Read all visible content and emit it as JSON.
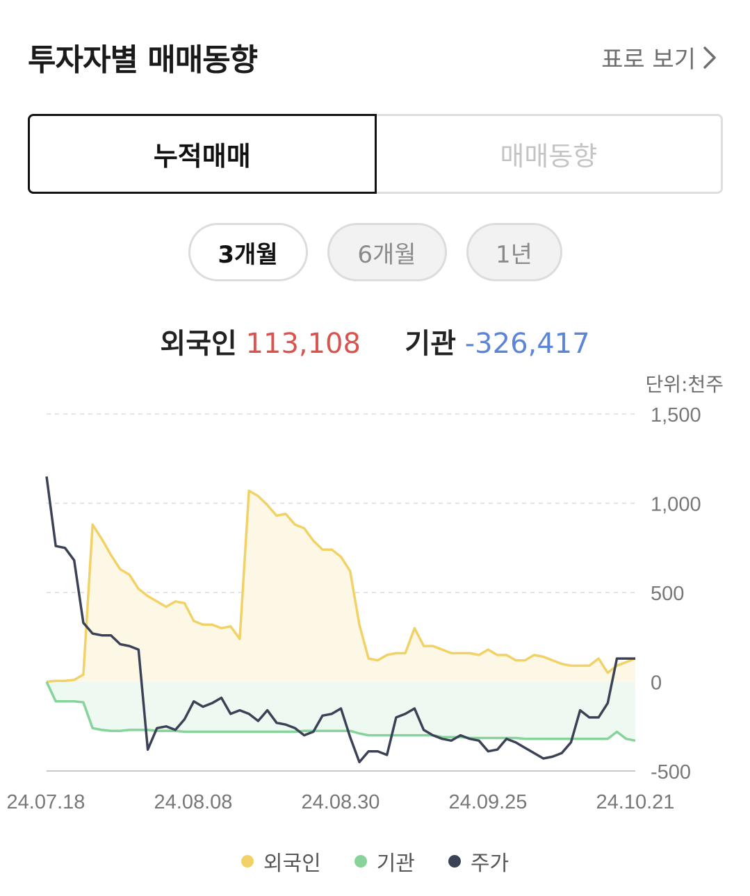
{
  "header": {
    "title": "투자자별 매매동향",
    "table_link": "표로 보기"
  },
  "tabs": [
    {
      "label": "누적매매",
      "active": true
    },
    {
      "label": "매매동향",
      "active": false
    }
  ],
  "periods": [
    {
      "label": "3개월",
      "active": true
    },
    {
      "label": "6개월",
      "active": false
    },
    {
      "label": "1년",
      "active": false
    }
  ],
  "summary": {
    "foreign_label": "외국인",
    "foreign_value": "113,108",
    "institution_label": "기관",
    "institution_value": "-326,417"
  },
  "unit": "단위:천주",
  "colors": {
    "foreign": "#f2d266",
    "institution": "#86d49a",
    "price": "#3b4256",
    "positive": "#d9534f",
    "negative": "#5b85d9"
  },
  "chart_data": {
    "type": "line",
    "yticks": [
      "1,500",
      "1,000",
      "500",
      "0",
      "-500"
    ],
    "ylim": [
      -500,
      1500
    ],
    "xticks": [
      "24.07.18",
      "24.08.08",
      "24.08.30",
      "24.09.25",
      "24.10.21"
    ],
    "x_count": 65,
    "legend": [
      "외국인",
      "기관",
      "주가"
    ],
    "series": [
      {
        "name": "외국인",
        "values": [
          0,
          5,
          5,
          10,
          40,
          880,
          800,
          710,
          630,
          600,
          520,
          480,
          450,
          420,
          450,
          440,
          340,
          320,
          320,
          300,
          310,
          240,
          1070,
          1040,
          990,
          930,
          940,
          880,
          860,
          790,
          740,
          740,
          700,
          620,
          320,
          130,
          120,
          150,
          160,
          160,
          300,
          200,
          200,
          180,
          160,
          160,
          160,
          150,
          180,
          150,
          150,
          120,
          120,
          150,
          140,
          120,
          100,
          90,
          90,
          90,
          130,
          50,
          90,
          110,
          130
        ]
      },
      {
        "name": "기관",
        "values": [
          0,
          -110,
          -110,
          -110,
          -115,
          -260,
          -270,
          -275,
          -275,
          -270,
          -270,
          -270,
          -275,
          -275,
          -275,
          -280,
          -280,
          -280,
          -280,
          -280,
          -280,
          -280,
          -280,
          -280,
          -280,
          -280,
          -280,
          -280,
          -275,
          -275,
          -275,
          -275,
          -275,
          -275,
          -290,
          -300,
          -300,
          -300,
          -300,
          -300,
          -300,
          -300,
          -300,
          -310,
          -310,
          -310,
          -315,
          -315,
          -315,
          -315,
          -315,
          -315,
          -320,
          -320,
          -320,
          -320,
          -320,
          -320,
          -320,
          -320,
          -320,
          -320,
          -280,
          -320,
          -330
        ]
      },
      {
        "name": "주가",
        "values": [
          1150,
          760,
          750,
          680,
          330,
          270,
          260,
          260,
          210,
          200,
          180,
          -380,
          -260,
          -250,
          -270,
          -210,
          -110,
          -140,
          -120,
          -90,
          -180,
          -160,
          -180,
          -220,
          -160,
          -230,
          -240,
          -260,
          -300,
          -280,
          -190,
          -180,
          -150,
          -310,
          -450,
          -390,
          -390,
          -410,
          -200,
          -180,
          -150,
          -270,
          -300,
          -320,
          -330,
          -300,
          -320,
          -330,
          -390,
          -380,
          -320,
          -340,
          -370,
          -400,
          -430,
          -420,
          -400,
          -340,
          -160,
          -200,
          -200,
          -120,
          130,
          130,
          130
        ]
      }
    ]
  }
}
